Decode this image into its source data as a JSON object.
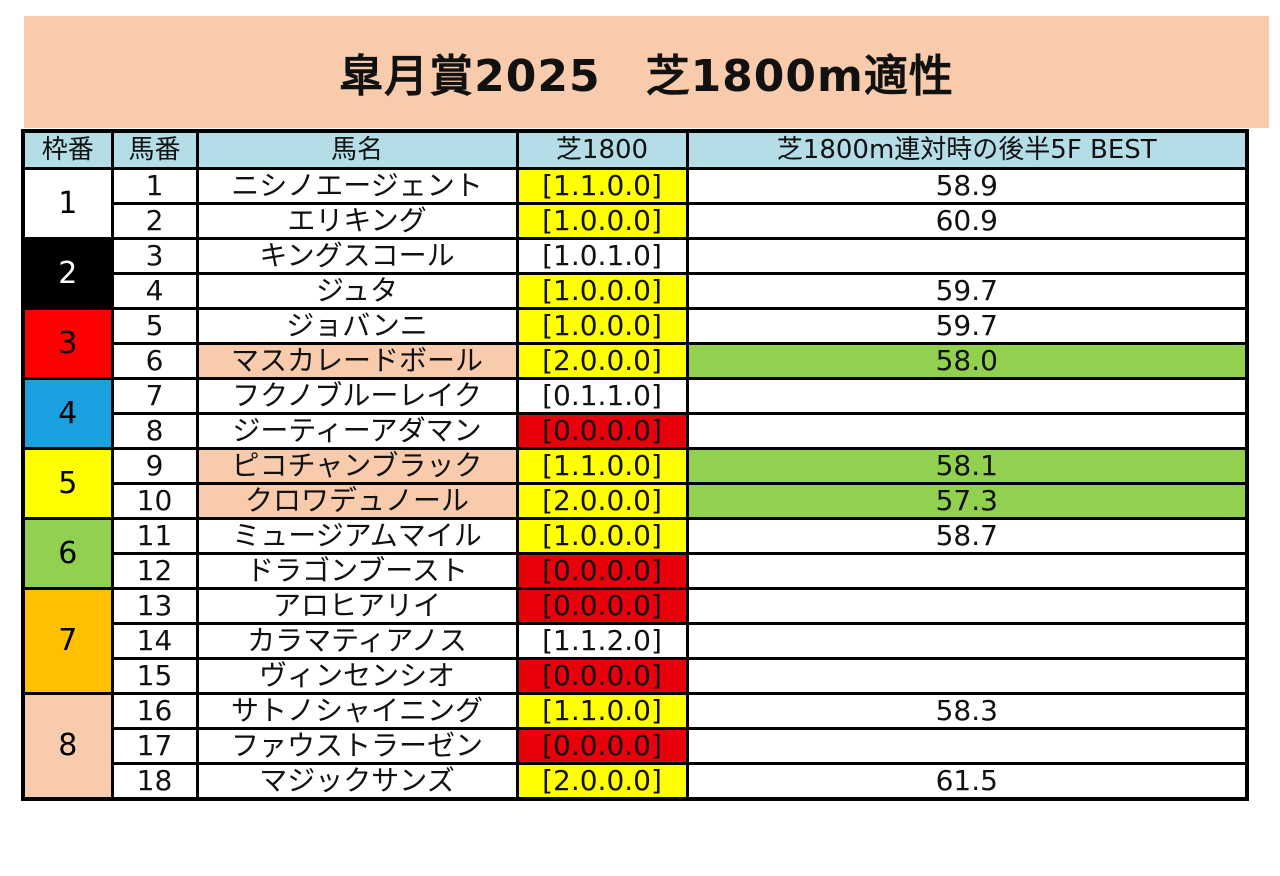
{
  "title": "皐月賞2025　芝1800m適性",
  "headers": {
    "waku": "枠番",
    "umaban": "馬番",
    "name": "馬名",
    "record": "芝1800",
    "best": "芝1800m連対時の後半5F BEST"
  },
  "colors": {
    "header_bg": "#b4dde8",
    "title_bg": "#f8cbad",
    "yellow": "#ffff00",
    "red": "#e8000b",
    "green": "#92d050",
    "salmon": "#f8cbad"
  },
  "frames": [
    {
      "waku": "1",
      "rows": 2,
      "bg": "#ffffff",
      "fg": "#000000"
    },
    {
      "waku": "2",
      "rows": 2,
      "bg": "#000000",
      "fg": "#ffffff"
    },
    {
      "waku": "3",
      "rows": 2,
      "bg": "#ff0000",
      "fg": "#000000"
    },
    {
      "waku": "4",
      "rows": 2,
      "bg": "#1ba1e2",
      "fg": "#000000"
    },
    {
      "waku": "5",
      "rows": 2,
      "bg": "#ffff00",
      "fg": "#000000"
    },
    {
      "waku": "6",
      "rows": 2,
      "bg": "#92d050",
      "fg": "#000000"
    },
    {
      "waku": "7",
      "rows": 3,
      "bg": "#ffc000",
      "fg": "#000000"
    },
    {
      "waku": "8",
      "rows": 3,
      "bg": "#f8cbad",
      "fg": "#000000"
    }
  ],
  "horses": [
    {
      "num": "1",
      "name": "ニシノエージェント",
      "name_hl": false,
      "record": "[1.1.0.0]",
      "record_color": "yellow",
      "best": "58.9",
      "best_hl": false
    },
    {
      "num": "2",
      "name": "エリキング",
      "name_hl": false,
      "record": "[1.0.0.0]",
      "record_color": "yellow",
      "best": "60.9",
      "best_hl": false
    },
    {
      "num": "3",
      "name": "キングスコール",
      "name_hl": false,
      "record": "[1.0.1.0]",
      "record_color": "none",
      "best": "",
      "best_hl": false
    },
    {
      "num": "4",
      "name": "ジュタ",
      "name_hl": false,
      "record": "[1.0.0.0]",
      "record_color": "yellow",
      "best": "59.7",
      "best_hl": false
    },
    {
      "num": "5",
      "name": "ジョバンニ",
      "name_hl": false,
      "record": "[1.0.0.0]",
      "record_color": "yellow",
      "best": "59.7",
      "best_hl": false
    },
    {
      "num": "6",
      "name": "マスカレードボール",
      "name_hl": true,
      "record": "[2.0.0.0]",
      "record_color": "yellow",
      "best": "58.0",
      "best_hl": true
    },
    {
      "num": "7",
      "name": "フクノブルーレイク",
      "name_hl": false,
      "record": "[0.1.1.0]",
      "record_color": "none",
      "best": "",
      "best_hl": false
    },
    {
      "num": "8",
      "name": "ジーティーアダマン",
      "name_hl": false,
      "record": "[0.0.0.0]",
      "record_color": "red",
      "best": "",
      "best_hl": false
    },
    {
      "num": "9",
      "name": "ピコチャンブラック",
      "name_hl": true,
      "record": "[1.1.0.0]",
      "record_color": "yellow",
      "best": "58.1",
      "best_hl": true
    },
    {
      "num": "10",
      "name": "クロワデュノール",
      "name_hl": true,
      "record": "[2.0.0.0]",
      "record_color": "yellow",
      "best": "57.3",
      "best_hl": true
    },
    {
      "num": "11",
      "name": "ミュージアムマイル",
      "name_hl": false,
      "record": "[1.0.0.0]",
      "record_color": "yellow",
      "best": "58.7",
      "best_hl": false
    },
    {
      "num": "12",
      "name": "ドラゴンブースト",
      "name_hl": false,
      "record": "[0.0.0.0]",
      "record_color": "red",
      "best": "",
      "best_hl": false
    },
    {
      "num": "13",
      "name": "アロヒアリイ",
      "name_hl": false,
      "record": "[0.0.0.0]",
      "record_color": "red",
      "best": "",
      "best_hl": false
    },
    {
      "num": "14",
      "name": "カラマティアノス",
      "name_hl": false,
      "record": "[1.1.2.0]",
      "record_color": "none",
      "best": "",
      "best_hl": false
    },
    {
      "num": "15",
      "name": "ヴィンセンシオ",
      "name_hl": false,
      "record": "[0.0.0.0]",
      "record_color": "red",
      "best": "",
      "best_hl": false
    },
    {
      "num": "16",
      "name": "サトノシャイニング",
      "name_hl": false,
      "record": "[1.1.0.0]",
      "record_color": "yellow",
      "best": "58.3",
      "best_hl": false
    },
    {
      "num": "17",
      "name": "ファウストラーゼン",
      "name_hl": false,
      "record": "[0.0.0.0]",
      "record_color": "red",
      "best": "",
      "best_hl": false
    },
    {
      "num": "18",
      "name": "マジックサンズ",
      "name_hl": false,
      "record": "[2.0.0.0]",
      "record_color": "yellow",
      "best": "61.5",
      "best_hl": false
    }
  ]
}
